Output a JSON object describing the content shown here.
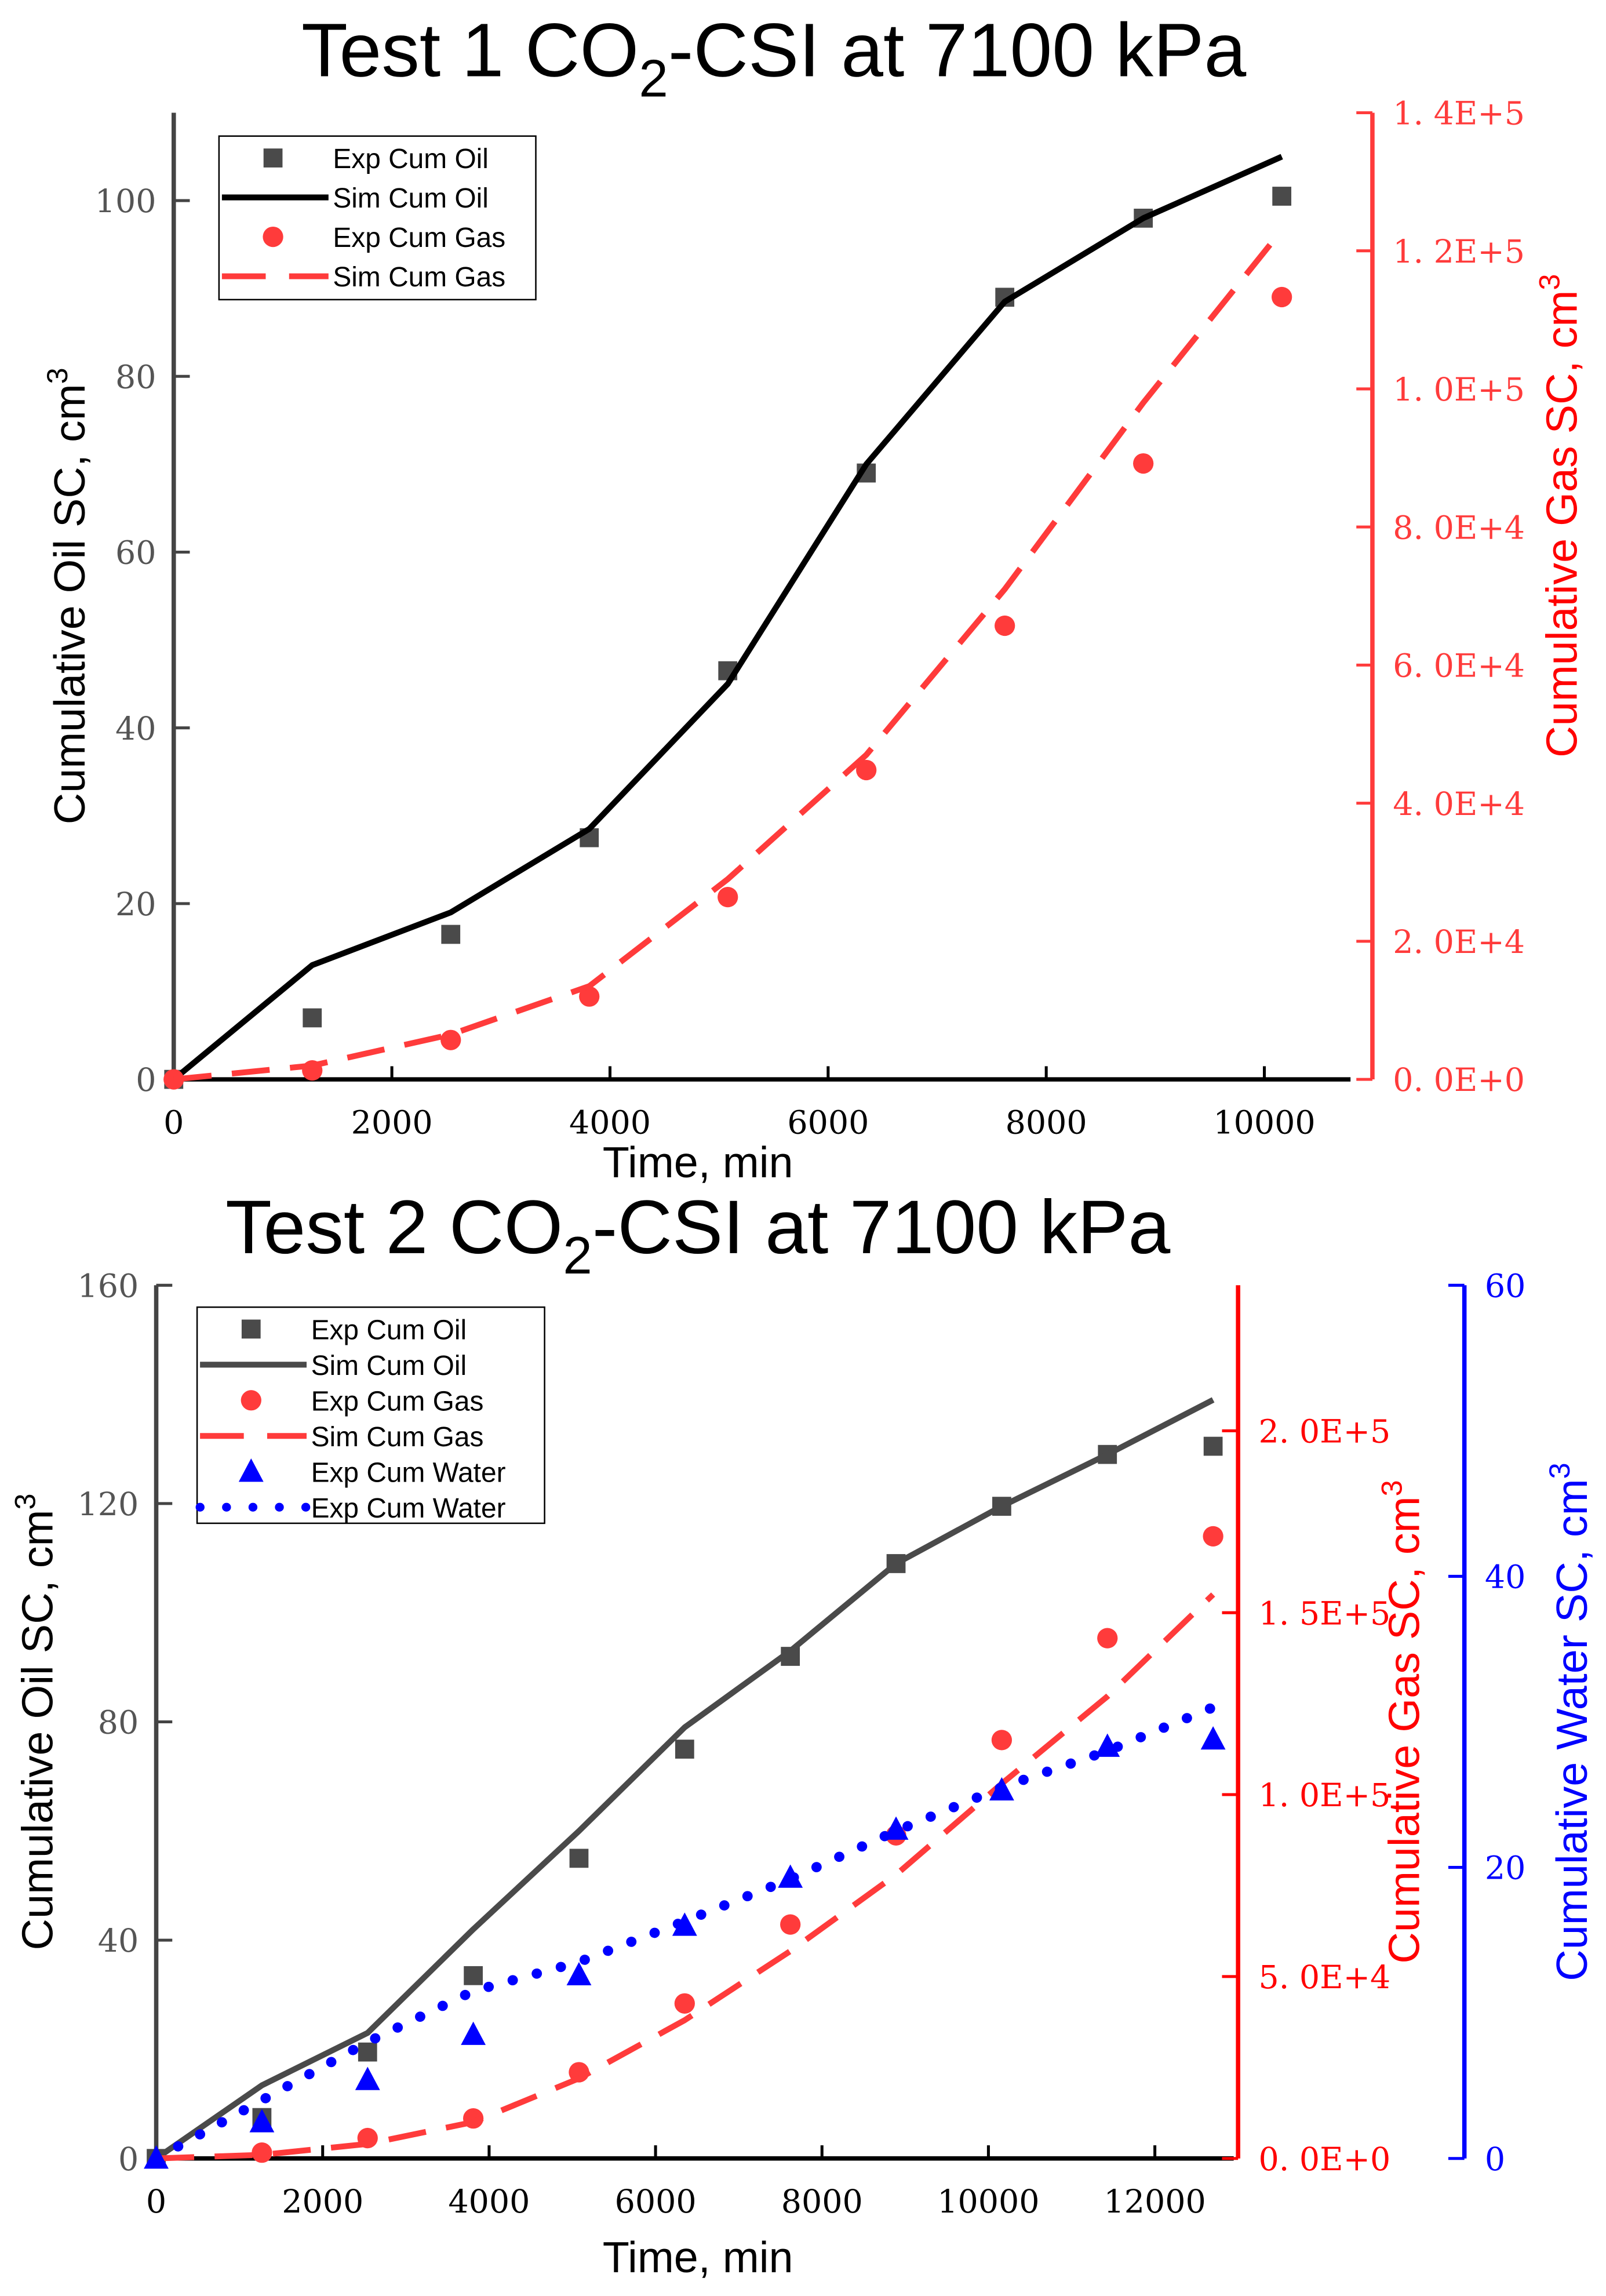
{
  "chart_data": [
    {
      "type": "line",
      "title": "Test 1 CO2-CSI at 7100 kPa",
      "title_main": "Test 1 CO",
      "title_sub": "2",
      "title_rest": "-CSI at 7100 kPa",
      "xlabel": "Time, min",
      "ylabel": "Cumulative Oil SC, cm",
      "ylabel_sup": "3",
      "y2label": "Cumulative Gas SC, cm",
      "y2label_sup": "3",
      "xlim": [
        0,
        10000
      ],
      "ylim": [
        0,
        110
      ],
      "y2lim": [
        0,
        140000
      ],
      "xticks": [
        "0",
        "2000",
        "4000",
        "6000",
        "8000",
        "10000"
      ],
      "xtick_values": [
        0,
        2000,
        4000,
        6000,
        8000,
        10000
      ],
      "yticks": [
        "0",
        "20",
        "40",
        "60",
        "80",
        "100"
      ],
      "ytick_values": [
        0,
        20,
        40,
        60,
        80,
        100
      ],
      "y2ticks": [
        "0. 0E+0",
        "2. 0E+4",
        "4. 0E+4",
        "6. 0E+4",
        "8. 0E+4",
        "1. 0E+5",
        "1. 2E+5",
        "1. 4E+5"
      ],
      "y2tick_values": [
        0,
        20000,
        40000,
        60000,
        80000,
        100000,
        120000,
        140000
      ],
      "legend_position": "top-left",
      "series": [
        {
          "name": "Exp Cum Oil",
          "axis": "y",
          "style": "square",
          "color": "#4a4a4a",
          "x": [
            0,
            1270,
            2540,
            3810,
            5080,
            6350,
            7620,
            8890,
            10160
          ],
          "y": [
            0,
            7,
            16.5,
            27.5,
            46.5,
            69,
            89,
            98,
            100.5
          ]
        },
        {
          "name": "Sim Cum Oil",
          "axis": "y",
          "style": "solid",
          "color": "#000000",
          "x": [
            0,
            1270,
            2540,
            3810,
            5080,
            6350,
            7620,
            8890,
            10160
          ],
          "y": [
            0,
            13,
            19,
            28.5,
            45,
            70,
            88.5,
            98,
            105
          ]
        },
        {
          "name": "Exp Cum Gas",
          "axis": "y2",
          "style": "circle",
          "color": "#ff3b3b",
          "x": [
            0,
            1270,
            2540,
            3810,
            5080,
            6350,
            7620,
            8890,
            10160
          ],
          "y": [
            0,
            1300,
            5700,
            12000,
            26400,
            44800,
            65700,
            89200,
            113300
          ]
        },
        {
          "name": "Sim Cum Gas",
          "axis": "y2",
          "style": "dash",
          "color": "#ff3b3b",
          "x": [
            0,
            1270,
            2540,
            3810,
            5080,
            6350,
            7620,
            8890,
            10160
          ],
          "y": [
            0,
            2000,
            6500,
            13500,
            29000,
            47000,
            71000,
            98000,
            123000
          ]
        }
      ]
    },
    {
      "type": "line",
      "title": "Test 2 CO2-CSI at 7100 kPa",
      "title_main": "Test 2 CO",
      "title_sub": "2",
      "title_rest": "-CSI at 7100 kPa",
      "xlabel": "Time, min",
      "ylabel": "Cumulative Oil SC, cm",
      "ylabel_sup": "3",
      "y2label": "Cumulative Gas SC, cm",
      "y2label_sup": "3",
      "y3label": "Cumulative Water SC, cm",
      "y3label_sup": "3",
      "xlim": [
        0,
        12000
      ],
      "ylim": [
        0,
        160
      ],
      "y2lim": [
        0,
        240000
      ],
      "y3lim": [
        0,
        60
      ],
      "xticks": [
        "0",
        "2000",
        "4000",
        "6000",
        "8000",
        "10000",
        "12000"
      ],
      "xtick_values": [
        0,
        2000,
        4000,
        6000,
        8000,
        10000,
        12000
      ],
      "yticks": [
        "0",
        "40",
        "80",
        "120",
        "160"
      ],
      "ytick_values": [
        0,
        40,
        80,
        120,
        160
      ],
      "y2ticks": [
        "0. 0E+0",
        "5. 0E+4",
        "1. 0E+5",
        "1. 5E+5",
        "2. 0E+5"
      ],
      "y2tick_values": [
        0,
        50000,
        100000,
        150000,
        200000
      ],
      "y3ticks": [
        "0",
        "20",
        "40",
        "60"
      ],
      "y3tick_values": [
        0,
        20,
        40,
        60
      ],
      "legend_position": "top-left",
      "series": [
        {
          "name": "Exp Cum Oil",
          "axis": "y",
          "style": "square",
          "color": "#4a4a4a",
          "x": [
            0,
            1270,
            2540,
            3810,
            5080,
            6350,
            7620,
            8890,
            10160,
            11430,
            12700
          ],
          "y": [
            0,
            7.5,
            19.5,
            33.5,
            55,
            75,
            92,
            109,
            119.5,
            129,
            130.5
          ]
        },
        {
          "name": "Sim Cum Oil",
          "axis": "y",
          "style": "solid",
          "color": "#4a4a4a",
          "x": [
            0,
            1270,
            2540,
            3810,
            5080,
            6350,
            7620,
            8890,
            10160,
            11430,
            12700
          ],
          "y": [
            0,
            13.4,
            23,
            42,
            60,
            79,
            93,
            109,
            119.5,
            129,
            139
          ]
        },
        {
          "name": "Exp Cum Gas",
          "axis": "y2",
          "style": "circle",
          "color": "#ff3b3b",
          "x": [
            1270,
            2540,
            3810,
            5080,
            6350,
            7620,
            8890,
            10160,
            11430,
            12700
          ],
          "y": [
            1600,
            5600,
            11000,
            23700,
            42600,
            64300,
            88800,
            115000,
            143000,
            171000
          ]
        },
        {
          "name": "Sim Cum Gas",
          "axis": "y2",
          "style": "dash",
          "color": "#ff3b3b",
          "x": [
            0,
            1270,
            2540,
            3810,
            5080,
            6350,
            7620,
            8890,
            10160,
            11430,
            12700
          ],
          "y": [
            0,
            1000,
            4000,
            10000,
            22000,
            38000,
            57000,
            78000,
            103000,
            127000,
            155000
          ]
        },
        {
          "name": "Exp Cum Water",
          "axis": "y3",
          "style": "triangle",
          "color": "#0000ff",
          "x": [
            0,
            1270,
            2540,
            3810,
            5080,
            6350,
            7620,
            8890,
            10160,
            11430,
            12700
          ],
          "y": [
            0,
            2.5,
            5.4,
            8.5,
            12.6,
            16,
            19.3,
            22.6,
            25.3,
            28.3,
            28.8
          ]
        },
        {
          "name": "Exp Cum Water",
          "axis": "y3",
          "style": "dot",
          "color": "#0000ff",
          "x": [
            0,
            1270,
            2540,
            3810,
            5080,
            6350,
            7620,
            8890,
            10160,
            11430,
            12700
          ],
          "y": [
            0,
            4,
            8,
            11.5,
            13.5,
            16.3,
            19.2,
            22.5,
            25.5,
            28,
            31
          ]
        }
      ]
    }
  ]
}
